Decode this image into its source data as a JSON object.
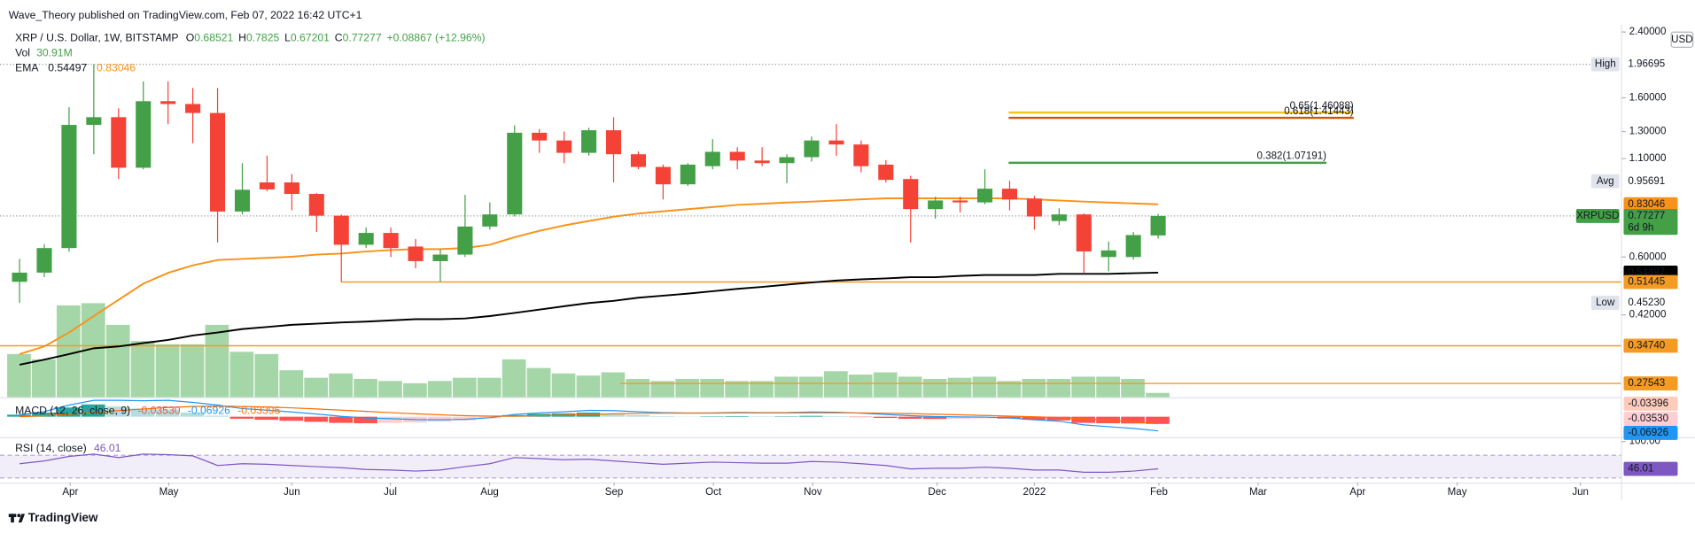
{
  "header": {
    "publisher": "Wave_Theory published on TradingView.com, Feb 07, 2022 16:42 UTC+1",
    "symbol": "XRP / U.S. Dollar, 1W, BITSTAMP",
    "ohlc_keys": [
      "O",
      "H",
      "L",
      "C"
    ],
    "change": "+0.08867 (+12.96%)",
    "vol_key": "Vol",
    "vol_value": "30.91M",
    "ema_key": "EMA",
    "currency": "USD",
    "symbol_badge": "XRPUSD",
    "countdown": "6d 9h",
    "footer": "TradingView"
  },
  "chart_data": {
    "type": "candlestick",
    "open": [
      0.515,
      0.545,
      0.634,
      1.354,
      1.42,
      1.04,
      1.567,
      1.54,
      1.457,
      0.794,
      0.95,
      0.95,
      0.885,
      0.774,
      0.647,
      0.696,
      0.64,
      0.585,
      0.609,
      0.724,
      0.78,
      1.29,
      1.23,
      1.14,
      1.31,
      1.13,
      1.045,
      0.939,
      1.05,
      1.147,
      1.087,
      1.07,
      1.11,
      1.23,
      1.2,
      1.06,
      0.97,
      0.806,
      0.85,
      0.84,
      0.914,
      0.86,
      0.749,
      0.78,
      0.6,
      0.6,
      0.68521
    ],
    "high": [
      0.593,
      0.65,
      1.51,
      1.96695,
      1.5,
      1.77,
      1.77,
      1.7,
      1.7,
      1.07,
      1.12,
      1.0,
      0.89,
      0.78,
      0.72,
      0.72,
      0.67,
      0.63,
      0.88,
      0.84,
      1.35,
      1.32,
      1.3,
      1.33,
      1.42,
      1.15,
      1.06,
      1.07,
      1.24,
      1.18,
      1.18,
      1.13,
      1.26,
      1.36,
      1.23,
      1.09,
      0.99,
      0.87,
      0.87,
      1.03,
      0.96,
      0.875,
      0.81,
      0.785,
      0.66,
      0.7,
      0.7825
    ],
    "low": [
      0.4523,
      0.53,
      0.62,
      1.13,
      0.97,
      1.03,
      1.36,
      1.21,
      0.656,
      0.78,
      0.9,
      0.8,
      0.7,
      0.514,
      0.635,
      0.6,
      0.56,
      0.515,
      0.6,
      0.71,
      0.77,
      1.14,
      1.07,
      1.12,
      0.95,
      1.03,
      0.855,
      0.93,
      1.03,
      1.03,
      1.05,
      0.945,
      1.08,
      1.12,
      1.01,
      0.95,
      0.656,
      0.76,
      0.79,
      0.83,
      0.8,
      0.71,
      0.73,
      0.545,
      0.55,
      0.59,
      0.67201
    ],
    "close": [
      0.545,
      0.634,
      1.354,
      1.42,
      1.04,
      1.567,
      1.54,
      1.457,
      0.794,
      0.908,
      0.91,
      0.885,
      0.774,
      0.647,
      0.696,
      0.634,
      0.585,
      0.609,
      0.724,
      0.78,
      1.29,
      1.23,
      1.14,
      1.31,
      1.13,
      1.045,
      0.939,
      1.06,
      1.147,
      1.087,
      1.07,
      1.11,
      1.23,
      1.2,
      1.05,
      0.965,
      0.806,
      0.85,
      0.84,
      0.914,
      0.855,
      0.77,
      0.78,
      0.621,
      0.625,
      0.687,
      0.77277
    ],
    "up_color": "#43a047",
    "down_color": "#f44336",
    "volume": [
      309,
      271,
      657,
      673,
      518,
      402,
      379,
      379,
      518,
      325,
      309,
      193,
      139,
      170,
      131,
      116,
      100,
      116,
      139,
      139,
      271,
      209,
      170,
      155,
      178,
      131,
      116,
      131,
      131,
      116,
      116,
      147,
      147,
      186,
      162,
      178,
      147,
      131,
      139,
      147,
      116,
      131,
      131,
      147,
      147,
      131,
      30.91
    ],
    "volume_color": "#a5d6a7",
    "vlim": [
      0,
      2822
    ],
    "xlim": [
      -0.79,
      64.72
    ],
    "xticks": [
      {
        "value": 2.05,
        "label": "Apr"
      },
      {
        "value": 6.03,
        "label": "May"
      },
      {
        "value": 11.0,
        "label": "Jun"
      },
      {
        "value": 14.98,
        "label": "Jul"
      },
      {
        "value": 18.99,
        "label": "Aug"
      },
      {
        "value": 24.02,
        "label": "Sep"
      },
      {
        "value": 28.03,
        "label": "Oct"
      },
      {
        "value": 32.05,
        "label": "Nov"
      },
      {
        "value": 37.07,
        "label": "Dec"
      },
      {
        "value": 41.0,
        "label": "2022"
      },
      {
        "value": 46.03,
        "label": "Feb"
      },
      {
        "value": 50.04,
        "label": "Mar"
      },
      {
        "value": 54.06,
        "label": "Apr"
      },
      {
        "value": 58.08,
        "label": "May"
      },
      {
        "value": 63.06,
        "label": "Jun"
      }
    ],
    "ylim": [
      0.253,
      2.87
    ],
    "log_scale": true,
    "yticks": [
      {
        "value": 2.4,
        "label": "2.40000"
      },
      {
        "value": 1.6,
        "label": "1.60000"
      },
      {
        "value": 1.3,
        "label": "1.30000"
      },
      {
        "value": 1.1,
        "label": "1.10000"
      },
      {
        "value": 0.6,
        "label": "0.60000"
      },
      {
        "value": 0.42,
        "label": "0.42000"
      }
    ],
    "ema": [
      {
        "color": "#000000",
        "values": [
          0.309,
          0.319,
          0.33,
          0.342,
          0.346,
          0.353,
          0.36,
          0.37,
          0.377,
          0.385,
          0.39,
          0.395,
          0.398,
          0.401,
          0.403,
          0.406,
          0.409,
          0.409,
          0.411,
          0.417,
          0.425,
          0.434,
          0.443,
          0.452,
          0.458,
          0.467,
          0.473,
          0.479,
          0.486,
          0.493,
          0.499,
          0.506,
          0.513,
          0.519,
          0.523,
          0.526,
          0.53,
          0.53,
          0.534,
          0.537,
          0.537,
          0.537,
          0.541,
          0.541,
          0.541,
          0.543,
          0.54497
        ]
      },
      {
        "color": "#f7931a",
        "values": [
          0.33,
          0.346,
          0.377,
          0.417,
          0.461,
          0.509,
          0.544,
          0.57,
          0.589,
          0.593,
          0.597,
          0.601,
          0.609,
          0.613,
          0.621,
          0.626,
          0.63,
          0.63,
          0.634,
          0.647,
          0.678,
          0.705,
          0.729,
          0.749,
          0.769,
          0.784,
          0.795,
          0.806,
          0.816,
          0.827,
          0.833,
          0.839,
          0.844,
          0.85,
          0.856,
          0.861,
          0.861,
          0.861,
          0.861,
          0.861,
          0.861,
          0.856,
          0.85,
          0.844,
          0.839,
          0.835,
          0.83046
        ]
      }
    ],
    "levels": [
      {
        "label": "High",
        "value": 1.96695
      },
      {
        "label": "Avg",
        "value": 0.95691
      },
      {
        "label": "Low",
        "value": 0.4523,
        "value_label": "0.45230"
      }
    ],
    "hlines": [
      {
        "value": 0.51445,
        "color": "#f59a23",
        "x_from": 13
      },
      {
        "value": 0.3474,
        "value_label": "0.34740",
        "color": "#f59a23",
        "x_from": -0.79
      },
      {
        "value": 0.27543,
        "color": "#f59a23",
        "x_from": 24.27
      }
    ],
    "fib": [
      {
        "label": "0.65(1.46088)",
        "value": 1.46088,
        "color": "#f5c518",
        "x_from": 39.96,
        "x_to": 53.9
      },
      {
        "label": "0.618(1.41443)",
        "value": 1.41443,
        "color": "#d35400",
        "x_from": 39.96,
        "x_to": 53.9
      },
      {
        "label": "0.382(1.07191)",
        "value": 1.07191,
        "color": "#43a047",
        "x_from": 39.96,
        "x_to": 52.8
      }
    ],
    "macd": {
      "title": "MACD (12, 26, close, 9)",
      "mlim": [
        -0.1,
        0.09
      ],
      "histogram": [
        0.01,
        0.02,
        0.045,
        0.06,
        0.05,
        0.04,
        0.035,
        0.02,
        0.005,
        -0.01,
        -0.015,
        -0.02,
        -0.025,
        -0.03,
        -0.032,
        -0.03,
        -0.028,
        -0.024,
        -0.018,
        -0.008,
        0.008,
        0.014,
        0.016,
        0.02,
        0.016,
        0.008,
        0.003,
        0.001,
        0.002,
        0.003,
        0.002,
        0.002,
        0.004,
        0.003,
        -0.002,
        -0.006,
        -0.01,
        -0.011,
        -0.01,
        -0.008,
        -0.009,
        -0.015,
        -0.018,
        -0.03,
        -0.032,
        -0.033,
        -0.0353
      ],
      "histogram_last_label": "-0.03530",
      "macd_line": {
        "color": "#2196f3",
        "values": [
          0.01,
          0.025,
          0.057,
          0.08,
          0.08,
          0.078,
          0.08,
          0.07,
          0.057,
          0.04,
          0.032,
          0.023,
          0.013,
          0.002,
          -0.006,
          -0.01,
          -0.014,
          -0.015,
          -0.013,
          -0.005,
          0.011,
          0.019,
          0.024,
          0.031,
          0.03,
          0.024,
          0.02,
          0.018,
          0.019,
          0.021,
          0.02,
          0.02,
          0.023,
          0.022,
          0.017,
          0.011,
          0.005,
          0.001,
          -0.001,
          -0.002,
          -0.006,
          -0.015,
          -0.022,
          -0.04,
          -0.049,
          -0.057,
          -0.06926
        ]
      },
      "signal_line": {
        "color": "#ff6d00",
        "values": [
          0,
          0.005,
          0.012,
          0.02,
          0.03,
          0.038,
          0.045,
          0.05,
          0.052,
          0.05,
          0.047,
          0.043,
          0.038,
          0.032,
          0.026,
          0.02,
          0.014,
          0.009,
          0.005,
          0.003,
          0.003,
          0.005,
          0.008,
          0.011,
          0.014,
          0.016,
          0.017,
          0.017,
          0.017,
          0.018,
          0.018,
          0.018,
          0.019,
          0.019,
          0.019,
          0.017,
          0.015,
          0.012,
          0.009,
          0.006,
          0.003,
          0,
          -0.004,
          -0.01,
          -0.017,
          -0.024,
          -0.03396
        ]
      }
    },
    "rsi": {
      "title": "RSI (14, close)",
      "color": "#7e57c2",
      "rlim": [
        20,
        100
      ],
      "band": [
        30,
        70
      ],
      "ticks": [
        {
          "value": 100,
          "label": "100.00"
        }
      ],
      "values": [
        55,
        60,
        68,
        72,
        66,
        72,
        71,
        69,
        52,
        55,
        54,
        52,
        50,
        48,
        45,
        44,
        42,
        44,
        50,
        55,
        66,
        64,
        62,
        63,
        60,
        57,
        54,
        56,
        58,
        57,
        56,
        56,
        59,
        58,
        55,
        52,
        46,
        47,
        47,
        49,
        47,
        44,
        44,
        40,
        40,
        42,
        46.01
      ]
    }
  }
}
